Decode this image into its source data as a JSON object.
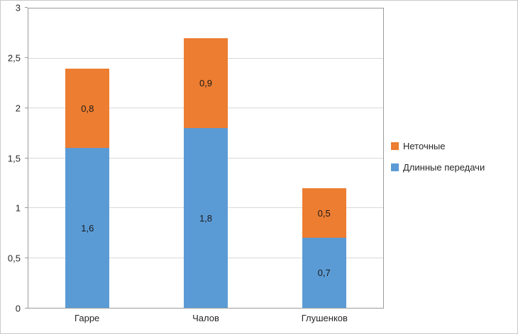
{
  "chart_data": {
    "type": "bar",
    "stacked": true,
    "title": "",
    "xlabel": "",
    "ylabel": "",
    "categories": [
      "Гарре",
      "Чалов",
      "Глушенков"
    ],
    "series": [
      {
        "name": "Длинные передачи",
        "color": "#5B9BD5",
        "values": [
          1.6,
          1.8,
          0.7
        ],
        "labels": [
          "1,6",
          "1,8",
          "0,7"
        ]
      },
      {
        "name": "Неточные",
        "color": "#ED7D31",
        "values": [
          0.8,
          0.9,
          0.5
        ],
        "labels": [
          "0,8",
          "0,9",
          "0,5"
        ]
      }
    ],
    "totals": [
      2.4,
      2.7,
      1.2
    ],
    "ylim": [
      0,
      3
    ],
    "yticks": [
      0,
      0.5,
      1,
      1.5,
      2,
      2.5,
      3
    ],
    "ytick_labels": [
      "0",
      "0,5",
      "1",
      "1,5",
      "2",
      "2,5",
      "3"
    ],
    "grid": true,
    "legend_position": "right",
    "legend_order_top_to_bottom": [
      "Неточные",
      "Длинные передачи"
    ],
    "grid_color": "#d9d9d9",
    "axis_color": "#9a9a9a"
  }
}
